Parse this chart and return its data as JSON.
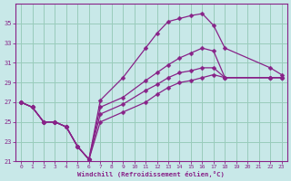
{
  "bg_color": "#c8e8e8",
  "line_color": "#882288",
  "grid_color": "#99ccbb",
  "xlim": [
    -0.5,
    23.5
  ],
  "ylim": [
    21,
    37
  ],
  "yticks": [
    21,
    23,
    25,
    27,
    29,
    31,
    33,
    35
  ],
  "xticks": [
    0,
    1,
    2,
    3,
    4,
    5,
    6,
    7,
    8,
    9,
    10,
    11,
    12,
    13,
    14,
    15,
    16,
    17,
    18,
    19,
    20,
    21,
    22,
    23
  ],
  "xlabel": "Windchill (Refroidissement éolien,°C)",
  "lines": [
    {
      "x": [
        0,
        1,
        2,
        3,
        4,
        5,
        6,
        7,
        9,
        11,
        12,
        13,
        14,
        15,
        16,
        17,
        18,
        22,
        23
      ],
      "y": [
        27,
        26.5,
        25,
        25,
        24.5,
        22.5,
        21.2,
        27.2,
        29.5,
        32.5,
        34.0,
        35.2,
        35.5,
        35.8,
        36.0,
        34.8,
        32.5,
        30.5,
        29.8
      ]
    },
    {
      "x": [
        0,
        1,
        2,
        3,
        4,
        5,
        6,
        7,
        9,
        11,
        12,
        13,
        14,
        15,
        16,
        17,
        18,
        22,
        23
      ],
      "y": [
        27,
        26.5,
        25,
        25,
        24.5,
        22.5,
        21.2,
        26.5,
        27.5,
        29.2,
        30.0,
        30.8,
        31.5,
        32.0,
        32.5,
        32.2,
        29.5,
        29.5,
        29.5
      ]
    },
    {
      "x": [
        0,
        1,
        2,
        3,
        4,
        5,
        6,
        7,
        9,
        11,
        12,
        13,
        14,
        15,
        16,
        17,
        18,
        22,
        23
      ],
      "y": [
        27,
        26.5,
        25,
        25,
        24.5,
        22.5,
        21.2,
        25.8,
        26.8,
        28.2,
        28.8,
        29.5,
        30.0,
        30.2,
        30.5,
        30.5,
        29.5,
        29.5,
        29.5
      ]
    },
    {
      "x": [
        0,
        1,
        2,
        3,
        4,
        5,
        6,
        7,
        9,
        11,
        12,
        13,
        14,
        15,
        16,
        17,
        18,
        22,
        23
      ],
      "y": [
        27,
        26.5,
        25,
        25,
        24.5,
        22.5,
        21.2,
        25.0,
        26.0,
        27.0,
        27.8,
        28.5,
        29.0,
        29.2,
        29.5,
        29.8,
        29.5,
        29.5,
        29.5
      ]
    }
  ]
}
